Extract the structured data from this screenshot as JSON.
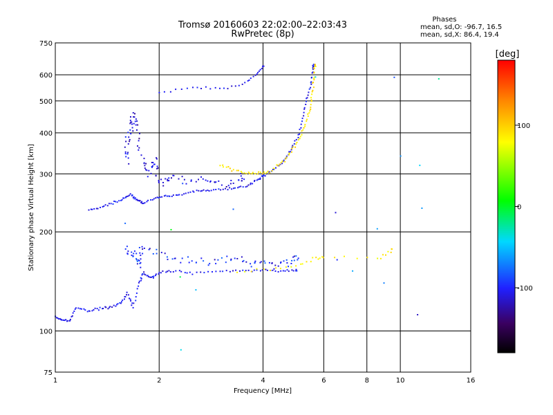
{
  "chart_data": {
    "type": "scatter",
    "title": "Tromsø 20160603 22:02:00–22:03:43",
    "subtitle": "RwPretec (8p)",
    "stats": {
      "heading": "Phases",
      "line_o": "mean, sd,O: -96.7, 16.5",
      "line_x": "mean, sd,X:  86.4, 19.4"
    },
    "xlabel": "Frequency [MHz]",
    "ylabel": "Stationary phase Virtual Height [km]",
    "x_scale": "log",
    "y_scale": "log",
    "xlim": [
      1,
      16
    ],
    "ylim": [
      75,
      750
    ],
    "x_ticks": [
      1,
      2,
      4,
      6,
      8,
      10,
      16
    ],
    "y_ticks": [
      75,
      100,
      200,
      300,
      400,
      500,
      600,
      750
    ],
    "grid": true,
    "colorbar": {
      "label": "[deg]",
      "min": -180,
      "max": 180,
      "ticks": [
        100,
        0,
        -100
      ]
    },
    "traces": [
      {
        "name": "O-low",
        "phase": -105,
        "spread": 20,
        "jitter": 0.012,
        "points": [
          [
            1.0,
            110
          ],
          [
            1.05,
            108
          ],
          [
            1.1,
            107
          ],
          [
            1.15,
            118
          ],
          [
            1.25,
            115
          ],
          [
            1.35,
            117
          ],
          [
            1.45,
            118
          ],
          [
            1.55,
            122
          ],
          [
            1.62,
            130
          ],
          [
            1.68,
            118
          ],
          [
            1.75,
            140
          ],
          [
            1.8,
            150
          ],
          [
            1.9,
            145
          ],
          [
            2.0,
            150
          ],
          [
            2.2,
            152
          ],
          [
            2.5,
            150
          ],
          [
            3.0,
            152
          ],
          [
            3.5,
            152
          ],
          [
            4.0,
            153
          ],
          [
            4.5,
            152
          ],
          [
            5.0,
            153
          ]
        ],
        "density": 7
      },
      {
        "name": "O-low-scatter",
        "phase": -100,
        "spread": 35,
        "jitter": 0.045,
        "points": [
          [
            1.6,
            175
          ],
          [
            1.7,
            170
          ],
          [
            1.75,
            160
          ],
          [
            1.8,
            180
          ],
          [
            2.1,
            168
          ],
          [
            2.5,
            162
          ],
          [
            3.0,
            165
          ],
          [
            3.5,
            162
          ],
          [
            4.0,
            160
          ],
          [
            4.5,
            158
          ],
          [
            5.0,
            165
          ]
        ],
        "density": 9
      },
      {
        "name": "X-low",
        "phase": 85,
        "spread": 25,
        "jitter": 0.02,
        "points": [
          [
            3.4,
            150
          ],
          [
            4.2,
            153
          ],
          [
            5.0,
            158
          ],
          [
            5.6,
            165
          ],
          [
            6.0,
            168
          ],
          [
            8.6,
            165
          ],
          [
            9.4,
            175
          ]
        ],
        "density": 5
      },
      {
        "name": "O-F",
        "phase": -105,
        "spread": 20,
        "jitter": 0.012,
        "points": [
          [
            1.25,
            232
          ],
          [
            1.4,
            240
          ],
          [
            1.55,
            250
          ],
          [
            1.65,
            260
          ],
          [
            1.72,
            250
          ],
          [
            1.8,
            245
          ],
          [
            2.0,
            255
          ],
          [
            2.2,
            258
          ],
          [
            2.5,
            265
          ],
          [
            2.8,
            268
          ],
          [
            3.2,
            270
          ],
          [
            3.6,
            275
          ],
          [
            3.9,
            290
          ],
          [
            4.1,
            300
          ],
          [
            4.5,
            320
          ],
          [
            4.8,
            350
          ],
          [
            5.1,
            400
          ],
          [
            5.3,
            480
          ],
          [
            5.5,
            560
          ],
          [
            5.6,
            640
          ]
        ],
        "density": 9
      },
      {
        "name": "O-F-spread",
        "phase": -110,
        "spread": 30,
        "jitter": 0.05,
        "points": [
          [
            1.6,
            330
          ],
          [
            1.62,
            380
          ],
          [
            1.65,
            430
          ],
          [
            1.7,
            460
          ],
          [
            1.75,
            360
          ],
          [
            1.85,
            300
          ],
          [
            1.95,
            330
          ],
          [
            2.0,
            280
          ],
          [
            2.2,
            290
          ],
          [
            2.6,
            285
          ],
          [
            3.0,
            280
          ],
          [
            3.5,
            290
          ]
        ],
        "density": 10
      },
      {
        "name": "X-F",
        "phase": 90,
        "spread": 20,
        "jitter": 0.015,
        "points": [
          [
            3.0,
            320
          ],
          [
            3.4,
            305
          ],
          [
            3.8,
            300
          ],
          [
            4.2,
            305
          ],
          [
            4.6,
            330
          ],
          [
            5.0,
            370
          ],
          [
            5.3,
            420
          ],
          [
            5.5,
            480
          ],
          [
            5.6,
            560
          ],
          [
            5.65,
            640
          ]
        ],
        "density": 9
      },
      {
        "name": "O-upper",
        "phase": -105,
        "spread": 15,
        "jitter": 0.012,
        "points": [
          [
            2.0,
            530
          ],
          [
            2.5,
            550
          ],
          [
            3.0,
            545
          ],
          [
            3.5,
            560
          ],
          [
            3.8,
            600
          ],
          [
            4.0,
            635
          ]
        ],
        "density": 6
      },
      {
        "name": "sparse",
        "phase": -60,
        "spread": 90,
        "jitter": 0.08,
        "points": [
          [
            1.6,
            200
          ],
          [
            2.1,
            210
          ],
          [
            2.3,
            140
          ],
          [
            2.6,
            130
          ],
          [
            3.3,
            230
          ],
          [
            6.5,
            220
          ],
          [
            6.6,
            160
          ],
          [
            7.2,
            150
          ],
          [
            8.5,
            195
          ],
          [
            9.0,
            140
          ],
          [
            9.7,
            580
          ],
          [
            10.0,
            350
          ],
          [
            11.0,
            330
          ],
          [
            11.5,
            250
          ],
          [
            13.0,
            570
          ],
          [
            11.5,
            110
          ],
          [
            2.4,
            90
          ],
          [
            5.7,
            620
          ]
        ],
        "density": 1
      }
    ]
  }
}
